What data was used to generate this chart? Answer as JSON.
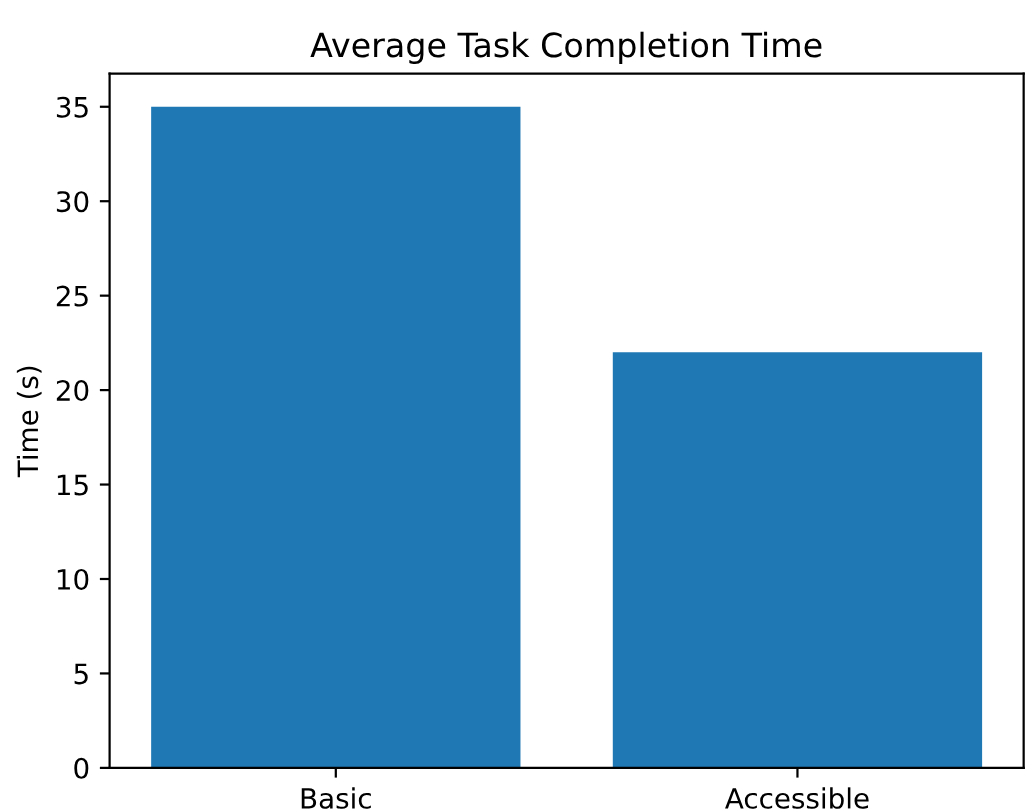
{
  "chart_data": {
    "type": "bar",
    "title": "Average Task Completion Time",
    "ylabel": "Time (s)",
    "categories": [
      "Basic",
      "Accessible"
    ],
    "values": [
      35,
      22
    ],
    "color": "#1f77b4",
    "ylim": [
      0,
      36.75
    ],
    "yticks": [
      0,
      5,
      10,
      15,
      20,
      25,
      30,
      35
    ],
    "grid": false
  }
}
